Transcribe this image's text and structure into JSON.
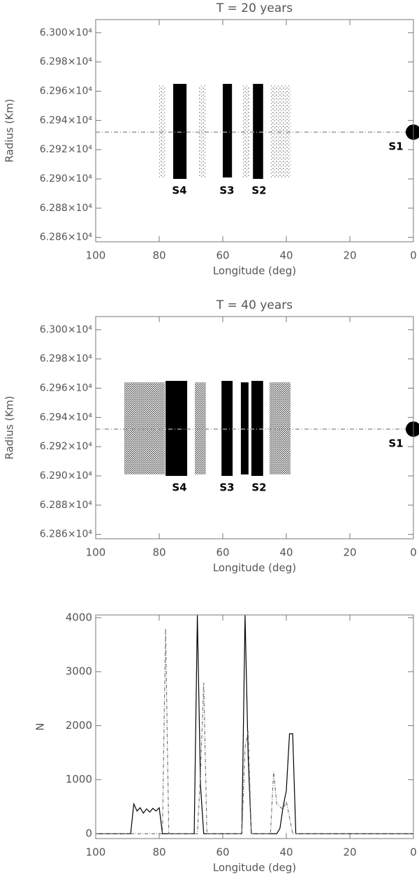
{
  "chart_data": [
    {
      "type": "band",
      "title": "T = 20 years",
      "x_label": "Longitude (deg)",
      "y_label": "Radius (Km)",
      "xlim": [
        100,
        0
      ],
      "xticks": [
        100,
        80,
        60,
        40,
        20,
        0
      ],
      "ylim": [
        62857,
        63009
      ],
      "yticks": [
        {
          "value": 62860,
          "label": "6.286×10⁴"
        },
        {
          "value": 62880,
          "label": "6.288×10⁴"
        },
        {
          "value": 62900,
          "label": "6.290×10⁴"
        },
        {
          "value": 62920,
          "label": "6.292×10⁴"
        },
        {
          "value": 62940,
          "label": "6.294×10⁴"
        },
        {
          "value": 62960,
          "label": "6.296×10⁴"
        },
        {
          "value": 62980,
          "label": "6.298×10⁴"
        },
        {
          "value": 63000,
          "label": "6.300×10⁴"
        }
      ],
      "bands": [
        {
          "lon": [
            80,
            78.2
          ],
          "radius": [
            62901,
            62964
          ],
          "density": "sparse"
        },
        {
          "lon": [
            75.6,
            71.4
          ],
          "radius": [
            62900,
            62965
          ],
          "density": "dense"
        },
        {
          "lon": [
            67.7,
            65.3
          ],
          "radius": [
            62901,
            62964
          ],
          "density": "sparse"
        },
        {
          "lon": [
            60,
            57.1
          ],
          "radius": [
            62901,
            62965
          ],
          "density": "dense"
        },
        {
          "lon": [
            53.8,
            51.6
          ],
          "radius": [
            62901,
            62964
          ],
          "density": "sparse"
        },
        {
          "lon": [
            50.5,
            47.3
          ],
          "radius": [
            62900,
            62965
          ],
          "density": "dense"
        },
        {
          "lon": [
            45,
            38.7
          ],
          "radius": [
            62901,
            62964
          ],
          "density": "sparse"
        }
      ],
      "reference_line": {
        "radius": 62932,
        "color": "#999999"
      },
      "satellite": {
        "lon": 0,
        "radius": 62932,
        "color": "#000000"
      },
      "annotations": [
        "S4",
        "S3",
        "S2",
        "S1"
      ]
    },
    {
      "type": "band",
      "title": "T = 40 years",
      "x_label": "Longitude (deg)",
      "y_label": "Radius (Km)",
      "xlim": [
        100,
        0
      ],
      "xticks": [
        100,
        80,
        60,
        40,
        20,
        0
      ],
      "ylim": [
        62857,
        63009
      ],
      "yticks": [
        {
          "value": 62860,
          "label": "6.286×10⁴"
        },
        {
          "value": 62880,
          "label": "6.288×10⁴"
        },
        {
          "value": 62900,
          "label": "6.290×10⁴"
        },
        {
          "value": 62920,
          "label": "6.292×10⁴"
        },
        {
          "value": 62940,
          "label": "6.294×10⁴"
        },
        {
          "value": 62960,
          "label": "6.296×10⁴"
        },
        {
          "value": 62980,
          "label": "6.298×10⁴"
        },
        {
          "value": 63000,
          "label": "6.300×10⁴"
        }
      ],
      "bands": [
        {
          "lon": [
            91,
            78.2
          ],
          "radius": [
            62901,
            62964
          ],
          "density": "medium"
        },
        {
          "lon": [
            78,
            71.2
          ],
          "radius": [
            62900,
            62965
          ],
          "density": "dense"
        },
        {
          "lon": [
            68.8,
            65.3
          ],
          "radius": [
            62901,
            62964
          ],
          "density": "medium"
        },
        {
          "lon": [
            60.4,
            56.9
          ],
          "radius": [
            62900,
            62965
          ],
          "density": "dense"
        },
        {
          "lon": [
            54.3,
            51.9
          ],
          "radius": [
            62901,
            62964
          ],
          "density": "dense"
        },
        {
          "lon": [
            51,
            47.3
          ],
          "radius": [
            62900,
            62965
          ],
          "density": "dense"
        },
        {
          "lon": [
            45.3,
            38.7
          ],
          "radius": [
            62901,
            62964
          ],
          "density": "medium"
        }
      ],
      "reference_line": {
        "radius": 62932,
        "color": "#999999"
      },
      "satellite": {
        "lon": 0,
        "radius": 62932,
        "color": "#000000"
      },
      "annotations": [
        "S4",
        "S3",
        "S2",
        "S1"
      ]
    },
    {
      "type": "line",
      "x_label": "Longitude (deg)",
      "y_label": "N",
      "xlim": [
        100,
        0
      ],
      "xticks": [
        100,
        80,
        60,
        40,
        20,
        0
      ],
      "ylim": [
        -90,
        4050
      ],
      "yticks": [
        0,
        1000,
        2000,
        3000,
        4000
      ],
      "x": [
        100,
        89,
        88,
        87,
        86,
        85,
        84,
        83,
        82,
        81,
        80,
        79,
        78,
        77,
        69,
        68,
        67,
        66,
        65,
        54,
        53,
        52,
        51,
        50,
        46,
        45,
        44,
        43,
        42,
        41,
        40,
        39,
        38,
        37,
        0
      ],
      "series": [
        {
          "color": "#000000",
          "linestyle": "solid",
          "values": [
            0,
            0,
            550,
            420,
            480,
            380,
            460,
            400,
            470,
            420,
            480,
            0,
            0,
            0,
            0,
            4050,
            900,
            0,
            0,
            0,
            4050,
            1400,
            0,
            0,
            0,
            0,
            0,
            0,
            100,
            500,
            800,
            1850,
            1850,
            0,
            0
          ]
        },
        {
          "color": "#777777",
          "linestyle": "dashdot",
          "values": [
            0,
            0,
            0,
            0,
            0,
            0,
            0,
            0,
            0,
            0,
            0,
            0,
            3800,
            0,
            0,
            0,
            1100,
            2800,
            0,
            0,
            1600,
            1900,
            0,
            0,
            0,
            0,
            1150,
            550,
            500,
            450,
            600,
            300,
            0,
            0,
            0
          ]
        }
      ]
    }
  ]
}
